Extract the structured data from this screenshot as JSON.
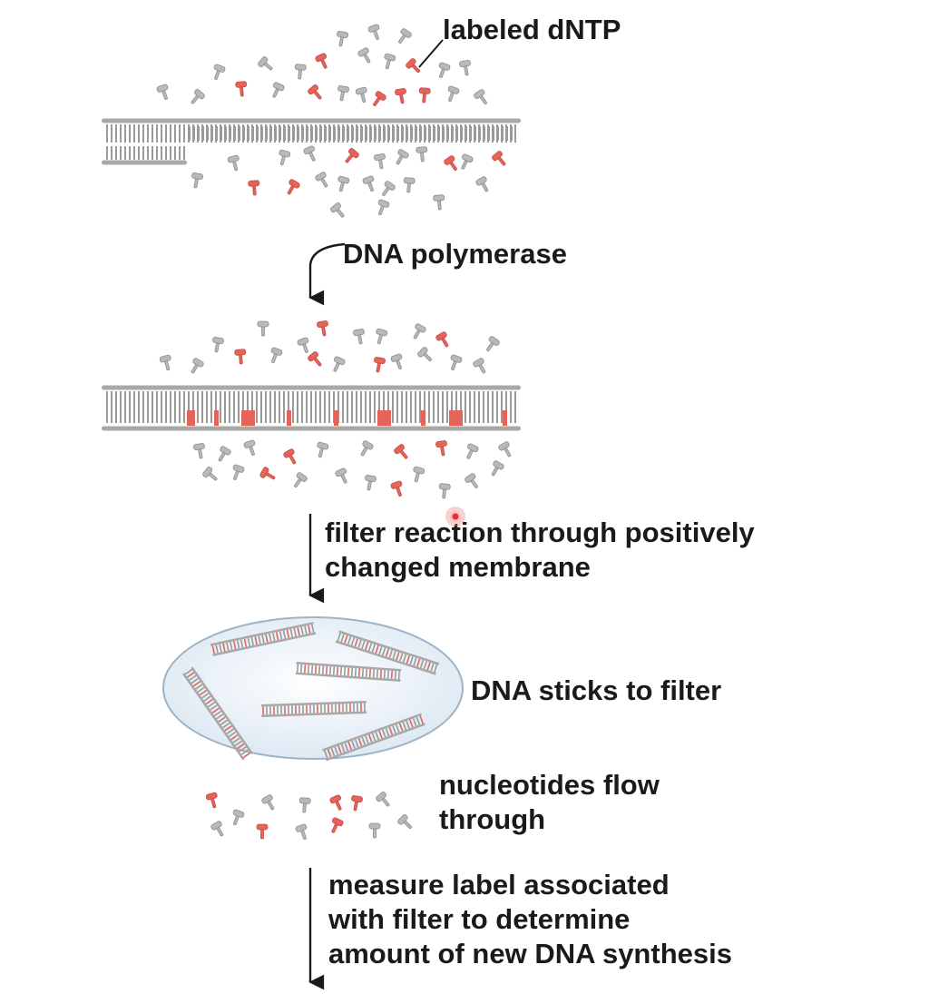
{
  "labels": {
    "labeled_dntp": "labeled dNTP",
    "dna_polymerase": "DNA polymerase",
    "filter_line1": "filter reaction through positively",
    "filter_line2": "changed membrane",
    "dna_sticks": "DNA sticks to filter",
    "flow_line1": "nucleotides flow",
    "flow_line2": "through",
    "measure_line1": "measure label associated",
    "measure_line2": "with filter to determine",
    "measure_line3": "amount of new DNA synthesis"
  },
  "colors": {
    "labeled": "#e5645a",
    "unlabeled": "#b9b9b9",
    "strand": "#a8a8a8",
    "text": "#1a1a1a",
    "filter": "#dde9f3"
  }
}
